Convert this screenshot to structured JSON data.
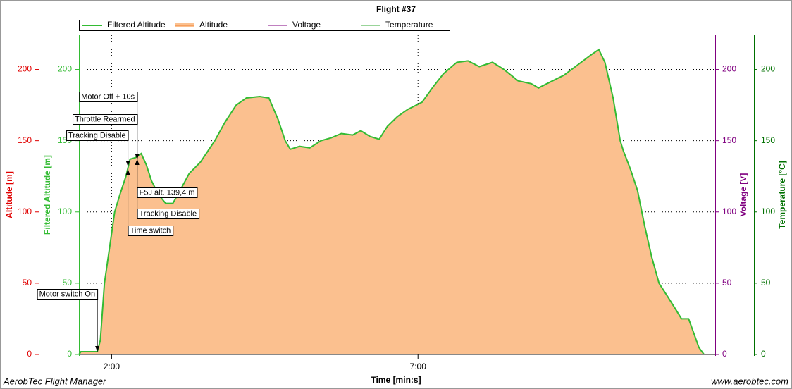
{
  "chart_data": {
    "type": "area",
    "title": "Flight #37",
    "x_label": "Time [min:s]",
    "footer_left": "AerobTec Flight Manager",
    "footer_right": "www.aerobtec.com",
    "xlim": [
      88,
      711
    ],
    "xticks": [
      {
        "value": 120,
        "label": "2:00"
      },
      {
        "value": 420,
        "label": "7:00"
      }
    ],
    "grid": true,
    "fill_color": "#fbc08f",
    "y_axes": [
      {
        "label": "Altitude [m]",
        "color": "#e00000",
        "side": "left",
        "ylim": [
          0,
          224
        ],
        "yticks": [
          0,
          50,
          100,
          150,
          200
        ]
      },
      {
        "label": "Filtered Altitude [m]",
        "color": "#33bb33",
        "side": "left",
        "ylim": [
          0,
          224
        ],
        "yticks": [
          0,
          50,
          100,
          150,
          200
        ]
      },
      {
        "label": "Voltage [V]",
        "color": "#800080",
        "side": "right",
        "ylim": [
          0,
          224
        ],
        "yticks": [
          0,
          50,
          100,
          150,
          200
        ]
      },
      {
        "label": "Temperature [°C]",
        "color": "#007000",
        "side": "right",
        "ylim": [
          0,
          224
        ],
        "yticks": [
          0,
          50,
          100,
          150,
          200
        ]
      }
    ],
    "x": [
      88,
      90,
      106,
      109,
      113,
      118,
      123,
      128,
      134,
      138,
      143,
      149,
      154,
      159,
      166,
      173,
      180,
      187,
      196,
      207,
      221,
      231,
      242,
      252,
      265,
      274,
      283,
      290,
      295,
      304,
      314,
      325,
      335,
      345,
      356,
      364,
      373,
      382,
      390,
      400,
      410,
      424,
      435,
      445,
      458,
      469,
      480,
      493,
      504,
      518,
      531,
      538,
      549,
      563,
      576,
      589,
      597,
      603,
      611,
      618,
      621,
      628,
      635,
      642,
      649,
      656,
      665,
      672,
      678,
      685,
      690,
      695,
      700
    ],
    "series": [
      {
        "name": "Filtered Altitude",
        "color": "#33bb33",
        "values": [
          0,
          2,
          2,
          10,
          50,
          75,
          100,
          112,
          125,
          137,
          138,
          141,
          133,
          122,
          112,
          106,
          106,
          115,
          127,
          135,
          150,
          163,
          175,
          180,
          181,
          180,
          165,
          150,
          144,
          146,
          145,
          150,
          152,
          155,
          154,
          157,
          153,
          151,
          160,
          167,
          172,
          177,
          188,
          197,
          205,
          206,
          202,
          205,
          200,
          192,
          190,
          187,
          191,
          196,
          203,
          210,
          214,
          205,
          180,
          150,
          143,
          130,
          115,
          90,
          68,
          50,
          40,
          32,
          25,
          25,
          15,
          5,
          0
        ]
      },
      {
        "name": "Altitude",
        "color": "#f08030",
        "values": [
          0,
          2,
          2,
          10,
          50,
          75,
          100,
          112,
          125,
          137,
          138,
          141,
          133,
          122,
          112,
          106,
          106,
          115,
          127,
          135,
          150,
          163,
          175,
          180,
          181,
          180,
          165,
          150,
          144,
          146,
          145,
          150,
          152,
          155,
          154,
          157,
          153,
          151,
          160,
          167,
          172,
          177,
          188,
          197,
          205,
          206,
          202,
          205,
          200,
          192,
          190,
          187,
          191,
          196,
          203,
          210,
          214,
          205,
          180,
          150,
          143,
          130,
          115,
          90,
          68,
          50,
          40,
          32,
          25,
          25,
          15,
          5,
          0
        ]
      },
      {
        "name": "Voltage",
        "color": "#800080"
      },
      {
        "name": "Temperature",
        "color": "#33aa33"
      }
    ],
    "annotations": [
      {
        "text": "Motor switch On",
        "x": 106,
        "y": 2
      },
      {
        "text": "Tracking Disable",
        "x": 136,
        "y": 132
      },
      {
        "text": "Throttle Rearmed",
        "x": 145,
        "y": 137
      },
      {
        "text": "Motor Off + 10s",
        "x": 145,
        "y": 137
      },
      {
        "text": "F5J alt. 139,4 m",
        "x": 145,
        "y": 137
      },
      {
        "text": "Tracking Disable",
        "x": 145,
        "y": 137
      },
      {
        "text": "Time switch",
        "x": 136,
        "y": 130
      }
    ]
  }
}
